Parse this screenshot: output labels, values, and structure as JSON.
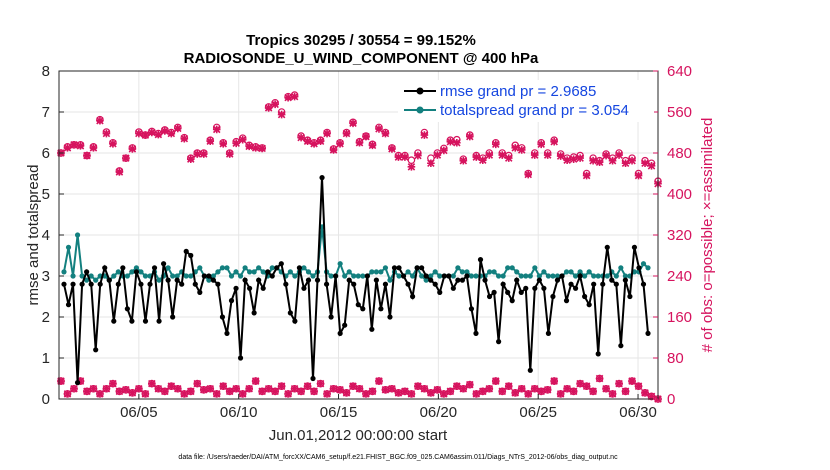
{
  "chart_data": {
    "type": "line",
    "title_line1": "Tropics 30295 / 30554 = 99.152%",
    "title_line2": "RADIOSONDE_U_WIND_COMPONENT @ 400 hPa",
    "xlabel": "Jun.01,2012 00:00:00 start",
    "ylabel_left": "rmse and totalspread",
    "ylabel_right": "# of obs: o=possible; ×=assimilated",
    "footnote": "data file: /Users/raeder/DAI/ATM_forcXX/CAM6_setup/f.e21.FHIST_BGC.f09_025.CAM6assim.011/Diags_NTrS_2012-06/obs_diag_output.nc",
    "x_range": [
      1,
      31
    ],
    "x_ticks": [
      5,
      10,
      15,
      20,
      25,
      30
    ],
    "x_tick_labels": [
      "06/05",
      "06/10",
      "06/15",
      "06/20",
      "06/25",
      "06/30"
    ],
    "y_left_range": [
      0,
      8
    ],
    "y_left_ticks": [
      "0",
      "1",
      "2",
      "3",
      "4",
      "5",
      "6",
      "7",
      "8"
    ],
    "y_right_range": [
      0,
      640
    ],
    "y_right_ticks": [
      "0",
      "80",
      "160",
      "240",
      "320",
      "400",
      "480",
      "560",
      "640"
    ],
    "grid": true,
    "legend_position": "top-right",
    "colors": {
      "rmse": "#000000",
      "spread": "#13807f",
      "obs": "#d6135e",
      "legend_text": "#1546e0"
    },
    "series": [
      {
        "name": "rmse grand pr = 2.9685",
        "values": [
          2.8,
          2.3,
          2.8,
          0.4,
          2.8,
          3.1,
          2.8,
          1.2,
          2.8,
          3.2,
          2.9,
          1.9,
          2.8,
          3.2,
          2.2,
          1.9,
          3.1,
          2.8,
          1.9,
          2.8,
          3.2,
          1.9,
          3.3,
          2.9,
          2.0,
          2.9,
          2.8,
          3.6,
          3.5,
          2.8,
          2.6,
          3.0,
          3.0,
          2.9,
          2.8,
          2.0,
          1.6,
          2.4,
          2.7,
          1.0,
          2.9,
          2.7,
          2.1,
          2.9,
          2.7,
          3.1,
          3.0,
          3.2,
          3.3,
          2.8,
          2.1,
          1.9,
          3.2,
          2.7,
          2.9,
          0.5,
          2.9,
          5.4,
          2.8,
          2.0,
          3.0,
          1.6,
          1.8,
          2.9,
          2.8,
          2.3,
          2.2,
          3.0,
          1.7,
          2.9,
          2.2,
          2.8,
          2.0,
          3.2,
          3.2,
          3.0,
          2.8,
          2.5,
          3.2,
          3.2,
          3.0,
          2.9,
          2.8,
          2.6,
          3.0,
          3.0,
          2.7,
          2.9,
          2.9,
          3.0,
          2.2,
          1.6,
          3.4,
          2.9,
          2.5,
          2.6,
          1.4,
          2.8,
          2.6,
          2.4,
          2.9,
          2.6,
          2.7,
          0.7,
          2.7,
          2.9,
          2.7,
          1.6,
          2.5,
          2.9,
          3.0,
          2.4,
          2.8,
          2.7,
          3.0,
          2.5,
          2.3,
          2.8,
          1.1,
          2.8,
          3.7,
          2.9,
          2.8,
          1.3,
          2.9,
          2.5,
          3.7,
          3.2,
          2.8,
          1.6
        ],
        "marker": "dot"
      },
      {
        "name": "totalspread grand pr = 3.054",
        "values": [
          3.1,
          3.7,
          3.0,
          4.0,
          3.0,
          2.9,
          3.0,
          2.9,
          3.0,
          3.0,
          2.9,
          3.0,
          3.1,
          3.0,
          3.0,
          3.1,
          3.2,
          3.1,
          3.0,
          3.0,
          3.1,
          2.9,
          3.0,
          3.2,
          3.0,
          3.0,
          3.1,
          3.0,
          3.0,
          3.1,
          3.2,
          3.0,
          2.9,
          3.0,
          3.1,
          3.2,
          3.2,
          3.0,
          3.1,
          3.0,
          3.2,
          3.1,
          3.1,
          3.2,
          3.1,
          3.0,
          3.2,
          3.2,
          3.1,
          3.0,
          3.1,
          3.0,
          3.1,
          3.2,
          3.1,
          3.0,
          3.1,
          4.2,
          3.1,
          3.0,
          3.0,
          3.3,
          3.0,
          3.1,
          3.0,
          3.0,
          3.0,
          3.0,
          3.1,
          3.1,
          3.1,
          3.2,
          2.9,
          3.1,
          3.0,
          3.0,
          3.1,
          3.0,
          3.2,
          3.0,
          2.9,
          3.0,
          3.1,
          3.0,
          3.0,
          3.0,
          3.0,
          3.2,
          3.1,
          3.1,
          3.0,
          3.0,
          3.0,
          3.0,
          3.1,
          3.1,
          3.0,
          3.0,
          3.2,
          3.2,
          3.1,
          3.0,
          3.0,
          3.0,
          3.2,
          3.0,
          3.1,
          3.0,
          3.0,
          3.0,
          3.0,
          3.1,
          3.1,
          3.0,
          3.1,
          3.0,
          3.1,
          3.0,
          3.0,
          3.0,
          3.0,
          3.1,
          3.0,
          3.2,
          3.0,
          3.0,
          3.1,
          3.1,
          3.3,
          3.2
        ],
        "marker": "dot"
      },
      {
        "name": "obs possible (right axis)",
        "values": [
          480,
          492,
          496,
          496,
          475,
          492,
          545,
          521,
          500,
          445,
          470,
          490,
          521,
          515,
          522,
          518,
          525,
          520,
          530,
          510,
          470,
          480,
          480,
          505,
          530,
          500,
          480,
          502,
          509,
          495,
          492,
          490,
          570,
          578,
          560,
          590,
          593,
          513,
          505,
          500,
          505,
          520,
          488,
          500,
          520,
          540,
          502,
          513,
          497,
          530,
          520,
          490,
          475,
          475,
          466,
          480,
          520,
          470,
          480,
          489,
          505,
          506,
          468,
          515,
          475,
          470,
          480,
          500,
          480,
          475,
          495,
          490,
          440,
          480,
          500,
          480,
          505,
          478,
          470,
          472,
          475,
          440,
          470,
          465,
          478,
          470,
          480,
          465,
          470,
          440,
          465,
          460,
          425
        ],
        "x_start": 1.1,
        "x_step": 0.325,
        "marker": "circle"
      },
      {
        "name": "obs assimilated (right axis)",
        "values": [
          480,
          490,
          496,
          494,
          475,
          490,
          543,
          518,
          498,
          443,
          470,
          488,
          518,
          515,
          520,
          516,
          523,
          518,
          528,
          508,
          468,
          478,
          478,
          503,
          526,
          498,
          478,
          499,
          506,
          493,
          490,
          489,
          568,
          575,
          555,
          588,
          590,
          510,
          503,
          498,
          503,
          518,
          486,
          498,
          518,
          538,
          500,
          512,
          495,
          527,
          518,
          488,
          472,
          472,
          453,
          475,
          515,
          460,
          476,
          485,
          502,
          500,
          465,
          512,
          472,
          466,
          476,
          497,
          476,
          470,
          490,
          486,
          438,
          476,
          497,
          476,
          502,
          474,
          466,
          468,
          470,
          436,
          465,
          462,
          475,
          465,
          476,
          460,
          465,
          436,
          460,
          455,
          420
        ],
        "x_start": 1.1,
        "x_step": 0.325,
        "marker": "cross"
      },
      {
        "name": "obs low possible (right axis)",
        "values": [
          35,
          10,
          20,
          35,
          15,
          20,
          10,
          20,
          30,
          15,
          18,
          12,
          20,
          10,
          30,
          20,
          15,
          25,
          20,
          10,
          15,
          30,
          18,
          20,
          10,
          25,
          15,
          20,
          10,
          20,
          35,
          15,
          20,
          15,
          25,
          10,
          20,
          15,
          25,
          15,
          30,
          10,
          20,
          18,
          12,
          25,
          20,
          10,
          15,
          35,
          18,
          20,
          12,
          15,
          10,
          25,
          20,
          12,
          18,
          10,
          15,
          25,
          20,
          28,
          10,
          15,
          20,
          35,
          15,
          25,
          12,
          20,
          10,
          20,
          15,
          18,
          35,
          10,
          20,
          15,
          30,
          25,
          15,
          40,
          20,
          10,
          30,
          15,
          35,
          25,
          12,
          5,
          0
        ],
        "x_start": 1.1,
        "x_step": 0.325,
        "marker": "circle"
      },
      {
        "name": "obs low assimilated (right axis)",
        "values": [
          35,
          10,
          20,
          35,
          15,
          20,
          10,
          20,
          30,
          15,
          18,
          12,
          20,
          10,
          30,
          20,
          15,
          25,
          20,
          10,
          15,
          30,
          18,
          20,
          10,
          25,
          15,
          20,
          10,
          20,
          35,
          15,
          20,
          15,
          25,
          10,
          20,
          15,
          25,
          15,
          30,
          10,
          20,
          18,
          12,
          25,
          20,
          10,
          15,
          35,
          18,
          20,
          12,
          15,
          10,
          25,
          20,
          12,
          18,
          10,
          15,
          25,
          20,
          28,
          10,
          15,
          20,
          35,
          15,
          25,
          12,
          20,
          10,
          20,
          15,
          18,
          35,
          10,
          20,
          15,
          30,
          25,
          15,
          40,
          20,
          10,
          30,
          15,
          35,
          25,
          12,
          5,
          0
        ],
        "x_start": 1.1,
        "x_step": 0.325,
        "marker": "cross"
      }
    ]
  }
}
